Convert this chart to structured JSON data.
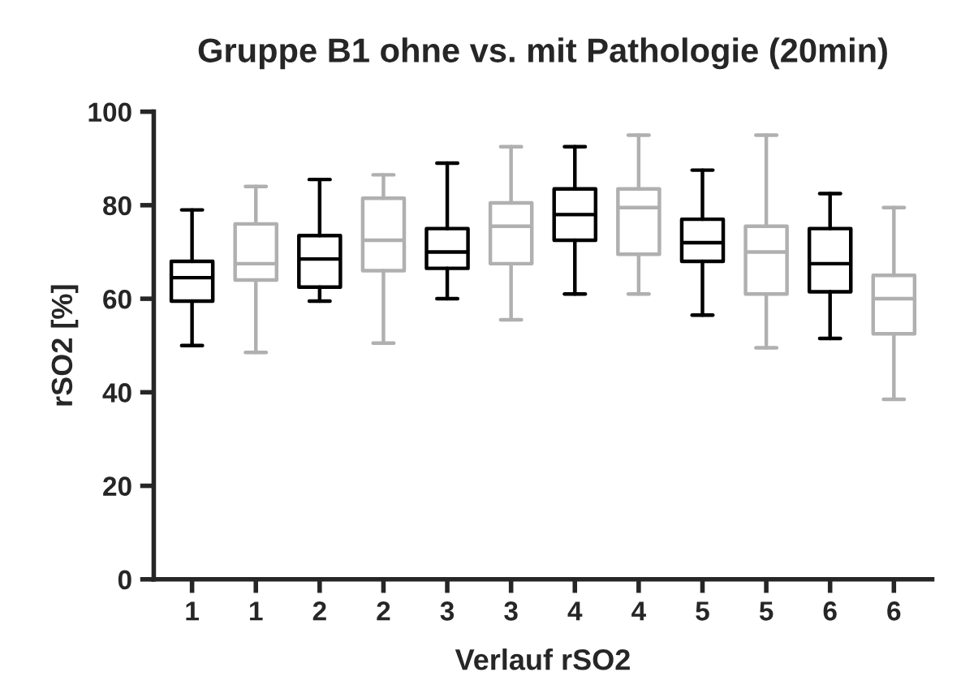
{
  "chart_data": {
    "type": "box",
    "title": "Gruppe B1 ohne vs. mit Pathologie (20min)",
    "xlabel": "Verlauf rSO2",
    "ylabel": "rSO2 [%]",
    "categories": [
      "1",
      "1",
      "2",
      "2",
      "3",
      "3",
      "4",
      "4",
      "5",
      "5",
      "6",
      "6"
    ],
    "colors": [
      "#000000",
      "#b0b0b0",
      "#000000",
      "#b0b0b0",
      "#000000",
      "#b0b0b0",
      "#000000",
      "#b0b0b0",
      "#000000",
      "#b0b0b0",
      "#000000",
      "#b0b0b0"
    ],
    "boxes": [
      {
        "low": 50,
        "q1": 59.5,
        "median": 64.5,
        "q3": 68,
        "high": 79
      },
      {
        "low": 48.5,
        "q1": 64,
        "median": 67.5,
        "q3": 76,
        "high": 84
      },
      {
        "low": 59.5,
        "q1": 62.5,
        "median": 68.5,
        "q3": 73.5,
        "high": 85.5
      },
      {
        "low": 50.5,
        "q1": 66,
        "median": 72.5,
        "q3": 81.5,
        "high": 86.5
      },
      {
        "low": 60,
        "q1": 66.5,
        "median": 70,
        "q3": 75,
        "high": 89
      },
      {
        "low": 55.5,
        "q1": 67.5,
        "median": 75.5,
        "q3": 80.5,
        "high": 92.5
      },
      {
        "low": 61,
        "q1": 72.5,
        "median": 78,
        "q3": 83.5,
        "high": 92.5
      },
      {
        "low": 61,
        "q1": 69.5,
        "median": 79.5,
        "q3": 83.5,
        "high": 95
      },
      {
        "low": 56.5,
        "q1": 68,
        "median": 72,
        "q3": 77,
        "high": 87.5
      },
      {
        "low": 49.5,
        "q1": 61,
        "median": 70,
        "q3": 75.5,
        "high": 95
      },
      {
        "low": 51.5,
        "q1": 61.5,
        "median": 67.5,
        "q3": 75,
        "high": 82.5
      },
      {
        "low": 38.5,
        "q1": 52.5,
        "median": 60,
        "q3": 65,
        "high": 79.5
      }
    ],
    "ylim": [
      0,
      100
    ],
    "yticks": [
      0,
      20,
      40,
      60,
      80,
      100
    ],
    "grid": false,
    "legend": false
  }
}
